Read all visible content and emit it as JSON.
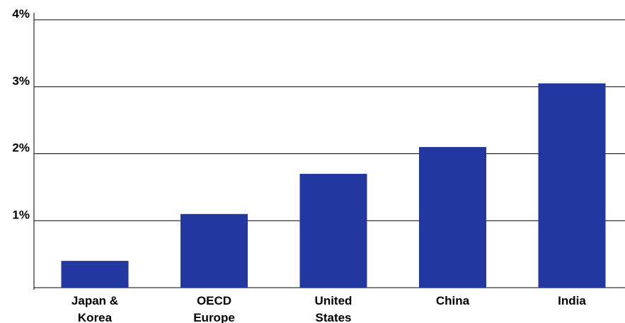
{
  "chart_data": {
    "type": "bar",
    "categories": [
      [
        "Japan &",
        "Korea"
      ],
      [
        "OECD",
        "Europe"
      ],
      [
        "United",
        "States"
      ],
      [
        "China"
      ],
      [
        "India"
      ]
    ],
    "values": [
      0.4,
      1.1,
      1.7,
      2.1,
      3.05
    ],
    "yticks": [
      "",
      "1%",
      "2%",
      "3%",
      "4%"
    ],
    "ylim": [
      0,
      4
    ],
    "grid": true,
    "colors": {
      "bar": "#2337a1",
      "grid": "#000000",
      "text": "#000000"
    }
  }
}
